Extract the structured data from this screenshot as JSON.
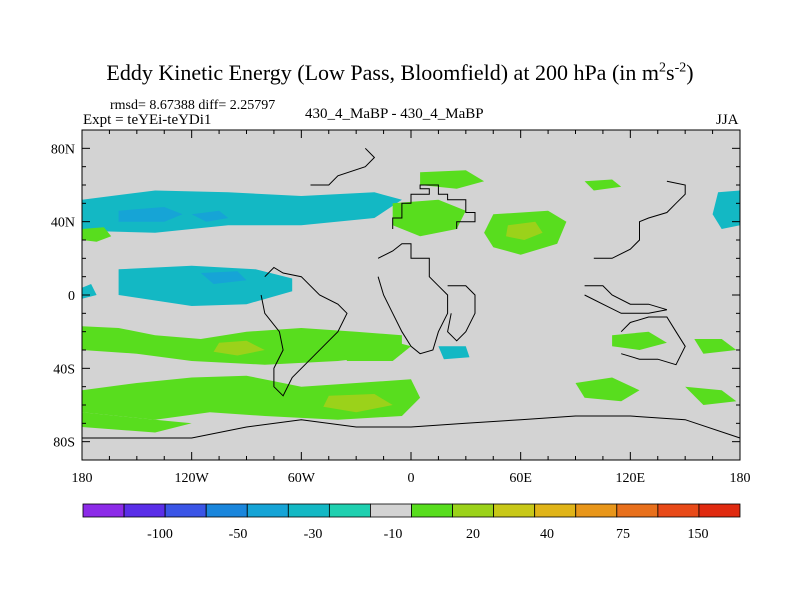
{
  "header": {
    "title": "Eddy Kinetic Energy (Low Pass, Bloomfield) at 200 hPa (in m",
    "title_units_sup1": "2",
    "title_units_mid": "s",
    "title_units_sup2": "-2",
    "title_close": ")",
    "stats": "rmsd= 8.67388 diff= 2.25797",
    "experiment": "Expt = teYEi-teYDi1",
    "comparison": "430_4_MaBP - 430_4_MaBP",
    "season": "JJA"
  },
  "chart_data": {
    "type": "heatmap",
    "title": "Eddy Kinetic Energy (Low Pass, Bloomfield) at 200 hPa (in m2s-2)",
    "projection": "cylindrical equidistant",
    "xlim": [
      -180,
      180
    ],
    "ylim": [
      -90,
      90
    ],
    "x_ticks": [
      -180,
      -120,
      -60,
      0,
      60,
      120,
      180
    ],
    "x_tick_labels": [
      "180",
      "120W",
      "60W",
      "0",
      "60E",
      "120E",
      "180"
    ],
    "y_ticks": [
      80,
      40,
      0,
      -40,
      -80
    ],
    "y_tick_labels": [
      "80N",
      "40N",
      "0",
      "40S",
      "80S"
    ],
    "background_color": "#d3d3d3",
    "colorbar": {
      "colors": [
        "#8c2be8",
        "#5a2ee8",
        "#3a55e6",
        "#1a86dc",
        "#16a4d6",
        "#13b8c4",
        "#1fd0b0",
        "#d3d3d3",
        "#58dd1e",
        "#9bd21a",
        "#c8c818",
        "#e0b418",
        "#e8961a",
        "#e8701c",
        "#e84a18",
        "#e02a10"
      ],
      "boundary_labels": [
        "-100",
        "-50",
        "-30",
        "-10",
        "20",
        "40",
        "75",
        "150"
      ]
    },
    "regions": [
      {
        "name": "north-atlantic-low-band",
        "fill_index": 5,
        "points": [
          [
            -180,
            52
          ],
          [
            -140,
            57
          ],
          [
            -100,
            56
          ],
          [
            -60,
            54
          ],
          [
            -20,
            56
          ],
          [
            -5,
            52
          ],
          [
            -20,
            42
          ],
          [
            -60,
            38
          ],
          [
            -100,
            38
          ],
          [
            -140,
            34
          ],
          [
            -180,
            35
          ]
        ]
      },
      {
        "name": "north-atlantic-core",
        "fill_index": 4,
        "points": [
          [
            -160,
            46
          ],
          [
            -135,
            48
          ],
          [
            -125,
            44
          ],
          [
            -135,
            40
          ],
          [
            -160,
            40
          ]
        ]
      },
      {
        "name": "north-atlantic-core-2",
        "fill_index": 4,
        "points": [
          [
            -120,
            44
          ],
          [
            -105,
            46
          ],
          [
            -100,
            42
          ],
          [
            -112,
            40
          ]
        ]
      },
      {
        "name": "northwest-green-patch",
        "fill_index": 8,
        "points": [
          [
            -180,
            36
          ],
          [
            -168,
            37
          ],
          [
            -164,
            32
          ],
          [
            -172,
            29
          ],
          [
            -180,
            30
          ]
        ]
      },
      {
        "name": "northwest-pacific-band",
        "fill_index": 5,
        "points": [
          [
            168,
            56
          ],
          [
            180,
            57
          ],
          [
            180,
            38
          ],
          [
            170,
            36
          ],
          [
            165,
            44
          ]
        ]
      },
      {
        "name": "tropical-low",
        "fill_index": 5,
        "points": [
          [
            -160,
            14
          ],
          [
            -120,
            16
          ],
          [
            -85,
            14
          ],
          [
            -65,
            9
          ],
          [
            -65,
            2
          ],
          [
            -90,
            -5
          ],
          [
            -120,
            -6
          ],
          [
            -160,
            0
          ]
        ]
      },
      {
        "name": "tropical-low-edge",
        "fill_index": 5,
        "points": [
          [
            -180,
            4
          ],
          [
            -175,
            6
          ],
          [
            -172,
            0
          ],
          [
            -180,
            -2
          ]
        ]
      },
      {
        "name": "tropical-low-core",
        "fill_index": 4,
        "points": [
          [
            -115,
            12
          ],
          [
            -95,
            13
          ],
          [
            -90,
            8
          ],
          [
            -108,
            6
          ]
        ]
      },
      {
        "name": "arctic-green-north",
        "fill_index": 8,
        "points": [
          [
            5,
            67
          ],
          [
            30,
            68
          ],
          [
            40,
            62
          ],
          [
            25,
            58
          ],
          [
            5,
            60
          ]
        ]
      },
      {
        "name": "arctic-green-northeast",
        "fill_index": 8,
        "points": [
          [
            95,
            62
          ],
          [
            110,
            63
          ],
          [
            115,
            59
          ],
          [
            100,
            57
          ]
        ]
      },
      {
        "name": "asia-jet-patch",
        "fill_index": 8,
        "points": [
          [
            45,
            44
          ],
          [
            75,
            46
          ],
          [
            85,
            40
          ],
          [
            80,
            28
          ],
          [
            60,
            22
          ],
          [
            45,
            26
          ],
          [
            40,
            34
          ]
        ]
      },
      {
        "name": "asia-jet-core",
        "fill_index": 9,
        "points": [
          [
            53,
            38
          ],
          [
            68,
            40
          ],
          [
            72,
            34
          ],
          [
            62,
            30
          ],
          [
            52,
            32
          ]
        ]
      },
      {
        "name": "europe-green-patch",
        "fill_index": 8,
        "points": [
          [
            -10,
            50
          ],
          [
            15,
            52
          ],
          [
            30,
            46
          ],
          [
            25,
            36
          ],
          [
            5,
            32
          ],
          [
            -10,
            38
          ]
        ]
      },
      {
        "name": "south-midlat-band",
        "fill_index": 8,
        "points": [
          [
            -180,
            -17
          ],
          [
            -160,
            -18
          ],
          [
            -140,
            -22
          ],
          [
            -115,
            -24
          ],
          [
            -90,
            -20
          ],
          [
            -60,
            -18
          ],
          [
            -30,
            -20
          ],
          [
            -5,
            -22
          ],
          [
            -5,
            -32
          ],
          [
            -40,
            -36
          ],
          [
            -80,
            -38
          ],
          [
            -120,
            -36
          ],
          [
            -150,
            -32
          ],
          [
            -180,
            -30
          ]
        ]
      },
      {
        "name": "south-midlat-core",
        "fill_index": 9,
        "points": [
          [
            -105,
            -26
          ],
          [
            -90,
            -25
          ],
          [
            -80,
            -30
          ],
          [
            -95,
            -33
          ],
          [
            -108,
            -31
          ]
        ]
      },
      {
        "name": "south-atlantic-green",
        "fill_index": 8,
        "points": [
          [
            -40,
            -25
          ],
          [
            -15,
            -24
          ],
          [
            0,
            -28
          ],
          [
            -10,
            -36
          ],
          [
            -35,
            -36
          ]
        ]
      },
      {
        "name": "south-atlantic-cyan",
        "fill_index": 5,
        "points": [
          [
            15,
            -28
          ],
          [
            30,
            -28
          ],
          [
            32,
            -34
          ],
          [
            18,
            -35
          ]
        ]
      },
      {
        "name": "south-indian-green",
        "fill_index": 8,
        "points": [
          [
            110,
            -22
          ],
          [
            130,
            -20
          ],
          [
            140,
            -26
          ],
          [
            125,
            -30
          ],
          [
            110,
            -28
          ]
        ]
      },
      {
        "name": "far-south-east-green",
        "fill_index": 8,
        "points": [
          [
            155,
            -24
          ],
          [
            170,
            -24
          ],
          [
            178,
            -30
          ],
          [
            160,
            -32
          ]
        ]
      },
      {
        "name": "indian-green-patch",
        "fill_index": 8,
        "points": [
          [
            90,
            -48
          ],
          [
            110,
            -45
          ],
          [
            125,
            -52
          ],
          [
            115,
            -58
          ],
          [
            95,
            -56
          ]
        ]
      },
      {
        "name": "southern-green-band-2",
        "fill_index": 8,
        "points": [
          [
            150,
            -50
          ],
          [
            170,
            -52
          ],
          [
            178,
            -58
          ],
          [
            160,
            -60
          ]
        ]
      },
      {
        "name": "southern-ocean-green",
        "fill_index": 8,
        "points": [
          [
            -180,
            -52
          ],
          [
            -150,
            -48
          ],
          [
            -120,
            -45
          ],
          [
            -90,
            -44
          ],
          [
            -60,
            -50
          ],
          [
            -30,
            -48
          ],
          [
            0,
            -46
          ],
          [
            5,
            -56
          ],
          [
            -5,
            -66
          ],
          [
            -40,
            -68
          ],
          [
            -80,
            -66
          ],
          [
            -110,
            -64
          ],
          [
            -140,
            -68
          ],
          [
            -180,
            -64
          ]
        ]
      },
      {
        "name": "southern-ocean-green-2",
        "fill_index": 8,
        "points": [
          [
            -180,
            -64
          ],
          [
            -140,
            -68
          ],
          [
            -120,
            -70
          ],
          [
            -140,
            -75
          ],
          [
            -180,
            -72
          ]
        ]
      },
      {
        "name": "southern-ocean-core",
        "fill_index": 9,
        "points": [
          [
            -45,
            -55
          ],
          [
            -20,
            -54
          ],
          [
            -10,
            -60
          ],
          [
            -30,
            -64
          ],
          [
            -48,
            -61
          ]
        ]
      }
    ],
    "coastlines": [
      {
        "name": "europe-block",
        "points": [
          [
            -10,
            36
          ],
          [
            -10,
            42
          ],
          [
            -5,
            42
          ],
          [
            -5,
            50
          ],
          [
            0,
            50
          ],
          [
            0,
            55
          ],
          [
            10,
            55
          ],
          [
            10,
            58
          ],
          [
            5,
            58
          ],
          [
            5,
            60
          ],
          [
            15,
            60
          ],
          [
            15,
            55
          ],
          [
            20,
            55
          ],
          [
            20,
            52
          ],
          [
            30,
            52
          ],
          [
            30,
            45
          ],
          [
            35,
            45
          ],
          [
            35,
            40
          ],
          [
            25,
            40
          ],
          [
            25,
            36
          ]
        ]
      },
      {
        "name": "africa-block",
        "points": [
          [
            -18,
            20
          ],
          [
            -10,
            24
          ],
          [
            -5,
            28
          ],
          [
            0,
            28
          ],
          [
            0,
            20
          ],
          [
            10,
            20
          ],
          [
            10,
            10
          ],
          [
            15,
            5
          ],
          [
            20,
            0
          ],
          [
            20,
            -10
          ],
          [
            15,
            -20
          ],
          [
            12,
            -30
          ],
          [
            5,
            -32
          ],
          [
            0,
            -28
          ],
          [
            -5,
            -20
          ],
          [
            -10,
            -10
          ],
          [
            -15,
            0
          ],
          [
            -18,
            10
          ]
        ]
      },
      {
        "name": "africa-east",
        "points": [
          [
            20,
            5
          ],
          [
            30,
            5
          ],
          [
            35,
            0
          ],
          [
            35,
            -10
          ],
          [
            30,
            -20
          ],
          [
            25,
            -25
          ],
          [
            20,
            -20
          ],
          [
            22,
            -10
          ]
        ]
      },
      {
        "name": "australia-block",
        "points": [
          [
            115,
            -20
          ],
          [
            120,
            -15
          ],
          [
            130,
            -12
          ],
          [
            140,
            -12
          ],
          [
            145,
            -20
          ],
          [
            150,
            -28
          ],
          [
            145,
            -38
          ],
          [
            135,
            -35
          ],
          [
            125,
            -35
          ],
          [
            115,
            -32
          ]
        ]
      },
      {
        "name": "america-block",
        "points": [
          [
            -80,
            10
          ],
          [
            -75,
            15
          ],
          [
            -70,
            12
          ],
          [
            -60,
            10
          ],
          [
            -50,
            0
          ],
          [
            -40,
            -5
          ],
          [
            -35,
            -10
          ],
          [
            -40,
            -20
          ],
          [
            -45,
            -25
          ],
          [
            -55,
            -35
          ],
          [
            -65,
            -45
          ],
          [
            -70,
            -55
          ],
          [
            -75,
            -50
          ],
          [
            -75,
            -40
          ],
          [
            -70,
            -30
          ],
          [
            -72,
            -20
          ],
          [
            -80,
            -10
          ],
          [
            -82,
            0
          ]
        ]
      },
      {
        "name": "antarctica-block",
        "points": [
          [
            -180,
            -78
          ],
          [
            -120,
            -78
          ],
          [
            -90,
            -72
          ],
          [
            -60,
            -68
          ],
          [
            -30,
            -72
          ],
          [
            0,
            -72
          ],
          [
            30,
            -70
          ],
          [
            60,
            -68
          ],
          [
            90,
            -66
          ],
          [
            120,
            -66
          ],
          [
            150,
            -68
          ],
          [
            180,
            -78
          ]
        ]
      },
      {
        "name": "indonesia-block",
        "points": [
          [
            95,
            5
          ],
          [
            105,
            5
          ],
          [
            110,
            0
          ],
          [
            120,
            -5
          ],
          [
            130,
            -5
          ],
          [
            140,
            -8
          ],
          [
            130,
            -10
          ],
          [
            115,
            -10
          ],
          [
            105,
            -5
          ],
          [
            95,
            0
          ]
        ]
      },
      {
        "name": "east-asia-block",
        "points": [
          [
            100,
            20
          ],
          [
            110,
            20
          ],
          [
            120,
            25
          ],
          [
            125,
            30
          ],
          [
            125,
            40
          ],
          [
            130,
            42
          ],
          [
            140,
            45
          ],
          [
            145,
            50
          ],
          [
            150,
            55
          ],
          [
            150,
            60
          ],
          [
            140,
            62
          ]
        ]
      },
      {
        "name": "greenland-block",
        "points": [
          [
            -55,
            60
          ],
          [
            -45,
            60
          ],
          [
            -40,
            65
          ],
          [
            -25,
            70
          ],
          [
            -20,
            75
          ],
          [
            -25,
            80
          ]
        ]
      }
    ]
  }
}
